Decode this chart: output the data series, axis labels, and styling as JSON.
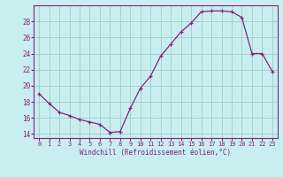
{
  "x": [
    0,
    1,
    2,
    3,
    4,
    5,
    6,
    7,
    8,
    9,
    10,
    11,
    12,
    13,
    14,
    15,
    16,
    17,
    18,
    19,
    20,
    21,
    22,
    23
  ],
  "y": [
    19.0,
    17.8,
    16.7,
    16.3,
    15.8,
    15.5,
    15.2,
    14.2,
    14.3,
    17.2,
    19.7,
    21.2,
    23.7,
    25.2,
    26.7,
    27.8,
    29.2,
    29.3,
    29.3,
    29.2,
    28.5,
    24.0,
    24.0,
    21.8
  ],
  "line_color": "#882277",
  "marker": "+",
  "bg_color": "#c8eef0",
  "grid_color": "#a0ccc8",
  "xlabel": "Windchill (Refroidissement éolien,°C)",
  "xlabel_color": "#882277",
  "tick_color": "#882277",
  "spine_color": "#882277",
  "ylim": [
    13.5,
    30.0
  ],
  "yticks": [
    14,
    16,
    18,
    20,
    22,
    24,
    26,
    28
  ],
  "xlim": [
    -0.5,
    23.5
  ],
  "xticks": [
    0,
    1,
    2,
    3,
    4,
    5,
    6,
    7,
    8,
    9,
    10,
    11,
    12,
    13,
    14,
    15,
    16,
    17,
    18,
    19,
    20,
    21,
    22,
    23
  ],
  "title_fontsize": 6,
  "tick_fontsize": 5,
  "xlabel_fontsize": 5.5
}
